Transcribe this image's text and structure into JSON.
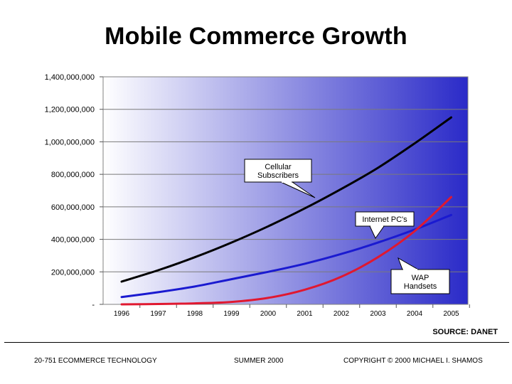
{
  "title": "Mobile Commerce Growth",
  "source": "SOURCE: DANET",
  "footer": {
    "left": "20-751 ECOMMERCE TECHNOLOGY",
    "center": "SUMMER 2000",
    "right": "COPYRIGHT © 2000 MICHAEL I. SHAMOS"
  },
  "colors": {
    "cellular": "#000000",
    "internet": "#1a1ad0",
    "wap": "#e01830",
    "grad_start": "#ffffff",
    "grad_end": "#2a2ac8"
  },
  "chart_data": {
    "type": "line",
    "title": "Mobile Commerce Growth",
    "x": [
      "1996",
      "1997",
      "1998",
      "1999",
      "2000",
      "2001",
      "2002",
      "2003",
      "2004",
      "2005"
    ],
    "ylim": [
      0,
      1400000000
    ],
    "yticks": [
      {
        "value": 0,
        "label": "-"
      },
      {
        "value": 200000000,
        "label": "200,000,000"
      },
      {
        "value": 400000000,
        "label": "400,000,000"
      },
      {
        "value": 600000000,
        "label": "600,000,000"
      },
      {
        "value": 800000000,
        "label": "800,000,000"
      },
      {
        "value": 1000000000,
        "label": "1,000,000,000"
      },
      {
        "value": 1200000000,
        "label": "1,200,000,000"
      },
      {
        "value": 1400000000,
        "label": "1,400,000,000"
      }
    ],
    "grid": true,
    "series": [
      {
        "key": "cellular",
        "name": "Cellular Subscribers",
        "callout": [
          "Cellular",
          "Subscribers"
        ],
        "values": [
          140000000,
          210000000,
          290000000,
          380000000,
          480000000,
          590000000,
          710000000,
          840000000,
          990000000,
          1150000000
        ]
      },
      {
        "key": "internet",
        "name": "Internet PC's",
        "callout": [
          "Internet PC's"
        ],
        "values": [
          45000000,
          75000000,
          110000000,
          155000000,
          200000000,
          250000000,
          310000000,
          380000000,
          460000000,
          550000000
        ]
      },
      {
        "key": "wap",
        "name": "WAP Handsets",
        "callout": [
          "WAP",
          "Handsets"
        ],
        "values": [
          0,
          2000000,
          6000000,
          15000000,
          40000000,
          90000000,
          170000000,
          290000000,
          450000000,
          660000000
        ]
      }
    ]
  }
}
